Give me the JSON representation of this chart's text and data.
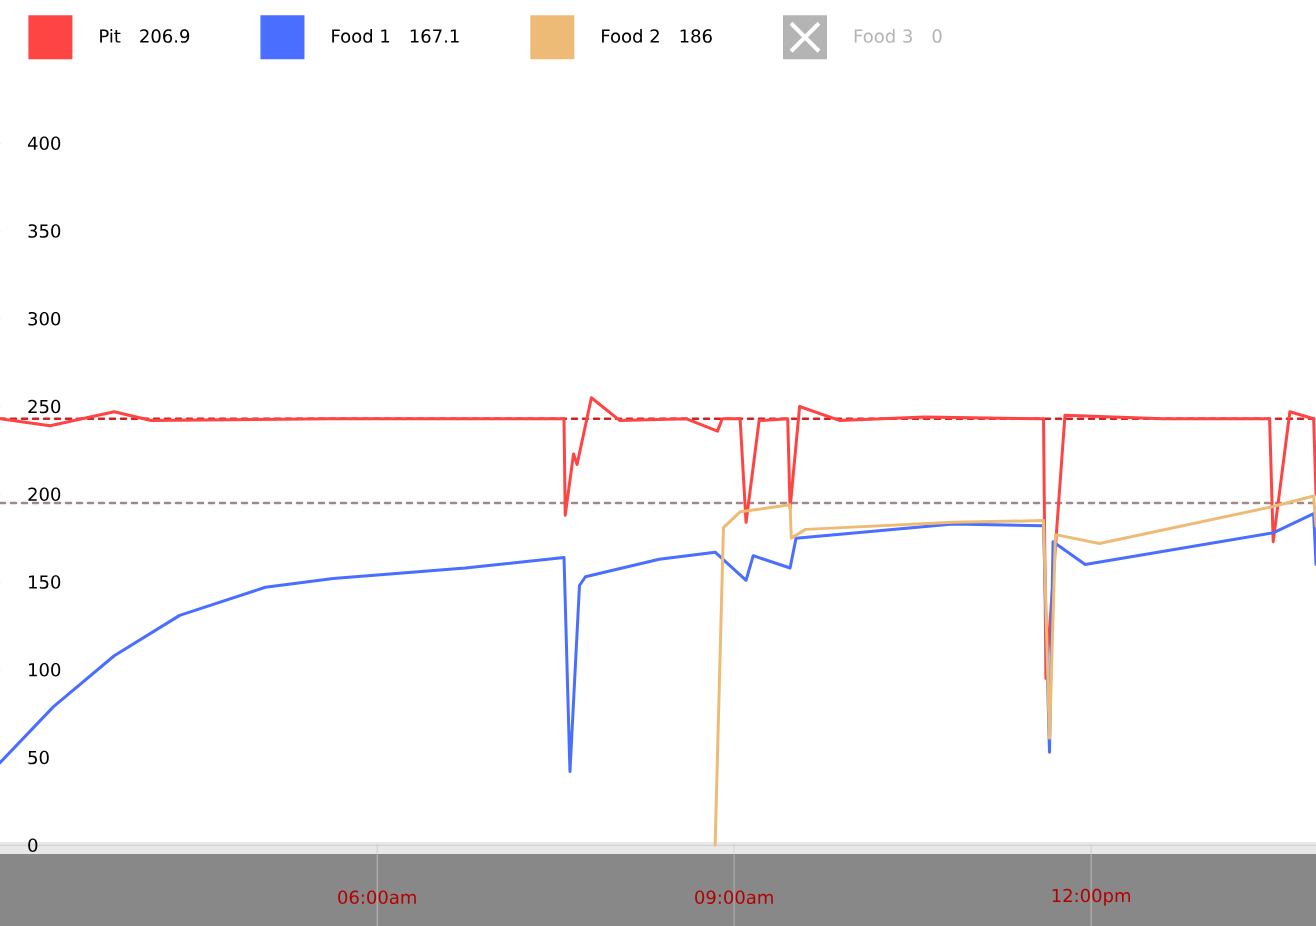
{
  "chart_data": {
    "type": "line",
    "xlim": [
      2.83,
      13.89
    ],
    "ylim": [
      0,
      400
    ],
    "xticks": [
      {
        "value": 6,
        "label": "06:00am"
      },
      {
        "value": 9,
        "label": "09:00am"
      },
      {
        "value": 12,
        "label": "12:00pm"
      }
    ],
    "yticks": [
      0,
      50,
      100,
      150,
      200,
      250,
      300,
      350,
      400
    ],
    "legend": "top",
    "line_style": "solid",
    "marker": "none",
    "annotations": [
      "206.9",
      "167.1",
      "186",
      "0"
    ],
    "ref_lines": [
      {
        "axis": "y",
        "value": 243,
        "color": "#cc2222",
        "line_style": "dotted"
      },
      {
        "axis": "y",
        "value": 195,
        "color": "#a08888",
        "line_style": "dotted"
      }
    ],
    "series": [
      {
        "name": "Pit",
        "color": "#ff4444",
        "x": [
          2.83,
          3.25,
          3.79,
          4.1,
          5.6,
          7.57,
          7.58,
          7.65,
          7.68,
          7.8,
          8.04,
          8.6,
          8.86,
          8.9,
          9.05,
          9.1,
          9.21,
          9.45,
          9.47,
          9.55,
          9.89,
          10.6,
          11.6,
          11.62,
          11.68,
          11.78,
          12.6,
          13.5,
          13.53,
          13.67,
          13.87,
          13.89
        ],
        "values": [
          243,
          239,
          247,
          242,
          243,
          243,
          188,
          223,
          217,
          255,
          242,
          243,
          236,
          243,
          243,
          184,
          242,
          243,
          192,
          250,
          242,
          244,
          243,
          95,
          null,
          245,
          243,
          243,
          173,
          247,
          243,
          200
        ]
      },
      {
        "name": "Food 1",
        "color": "#4a6eff",
        "x": [
          2.83,
          3.28,
          3.79,
          4.34,
          5.06,
          5.63,
          6.74,
          7.57,
          7.62,
          7.7,
          7.75,
          8.37,
          8.84,
          9.1,
          9.16,
          9.47,
          9.52,
          10.84,
          11.6,
          11.65,
          11.68,
          11.95,
          13.53,
          13.87,
          13.89
        ],
        "values": [
          47,
          79,
          108,
          131,
          147,
          152,
          158,
          164,
          42,
          148,
          153,
          163,
          167,
          151,
          165,
          158,
          175,
          183,
          182,
          53,
          173,
          160,
          178,
          189,
          160
        ]
      },
      {
        "name": "Food 2",
        "color": "#eebb77",
        "x": [
          8.84,
          8.91,
          9.05,
          9.47,
          9.48,
          9.6,
          10.84,
          11.6,
          11.65,
          11.7,
          12.07,
          13.53,
          13.87,
          13.89
        ],
        "values": [
          0,
          181,
          190,
          194,
          175,
          180,
          184,
          185,
          61,
          177,
          172,
          193,
          199,
          182
        ]
      },
      {
        "name": "Food 3",
        "color": "#b4b4b4"
      }
    ]
  }
}
